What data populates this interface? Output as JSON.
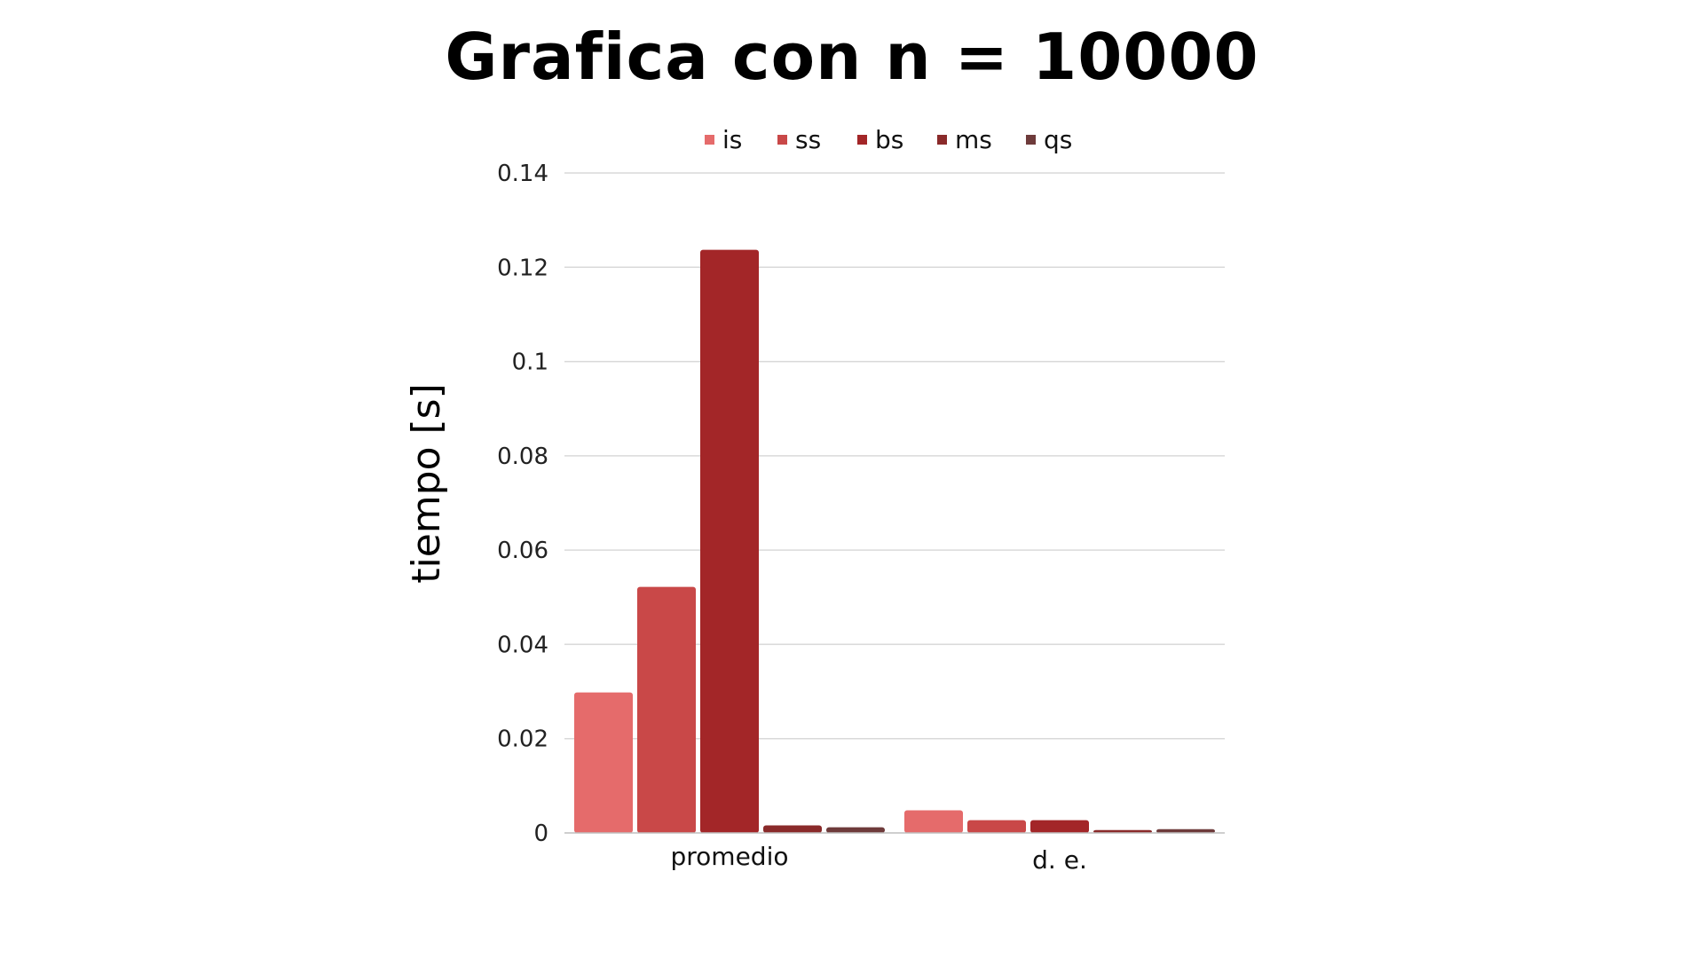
{
  "chart_data": {
    "type": "bar",
    "title": "Grafica con n =  10000",
    "xlabel": "",
    "ylabel": "tiempo [s]",
    "ylim": [
      0,
      0.14
    ],
    "y_ticks": [
      "0",
      "0.02",
      "0.04",
      "0.06",
      "0.08",
      "0.1",
      "0.12",
      "0.14"
    ],
    "y_tick_values": [
      0,
      0.02,
      0.04,
      0.06,
      0.08,
      0.1,
      0.12,
      0.14
    ],
    "grid": true,
    "legend_position": "top-center",
    "categories": [
      "promedio",
      "d. e."
    ],
    "series": [
      {
        "name": "is",
        "color": "#e56b6b",
        "values": [
          0.0298,
          0.0048
        ]
      },
      {
        "name": "ss",
        "color": "#c94848",
        "values": [
          0.0522,
          0.0027
        ]
      },
      {
        "name": "bs",
        "color": "#a32628",
        "values": [
          0.1237,
          0.0027
        ]
      },
      {
        "name": "ms",
        "color": "#8a2a2a",
        "values": [
          0.0016,
          0.0006
        ]
      },
      {
        "name": "qs",
        "color": "#6e3b3b",
        "values": [
          0.0012,
          0.0008
        ]
      }
    ]
  }
}
